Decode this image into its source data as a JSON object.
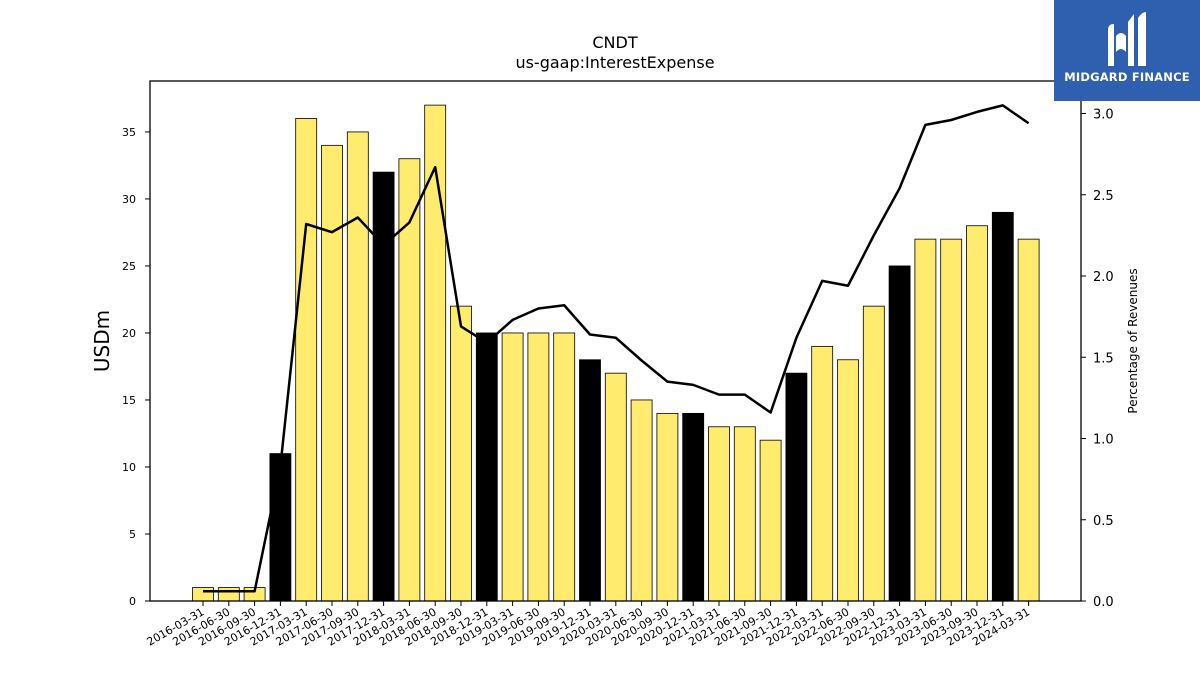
{
  "chart_data": {
    "type": "bar",
    "title": "CNDT",
    "subtitle": "us-gaap:InterestExpense",
    "ylabel": "USDm",
    "y2label": "Percentage of Revenues",
    "ylim": [
      0,
      38.8
    ],
    "y2lim": [
      0,
      3.2
    ],
    "yticks": [
      0,
      5,
      10,
      15,
      20,
      25,
      30,
      35
    ],
    "y2ticks": [
      0.0,
      0.5,
      1.0,
      1.5,
      2.0,
      2.5,
      3.0
    ],
    "grid": false,
    "categories": [
      "2016-03-31",
      "2016-06-30",
      "2016-09-30",
      "2016-12-31",
      "2017-03-31",
      "2017-06-30",
      "2017-09-30",
      "2017-12-31",
      "2018-03-31",
      "2018-06-30",
      "2018-09-30",
      "2018-12-31",
      "2019-03-31",
      "2019-06-30",
      "2019-09-30",
      "2019-12-31",
      "2020-03-31",
      "2020-06-30",
      "2020-09-30",
      "2020-12-31",
      "2021-03-31",
      "2021-06-30",
      "2021-09-30",
      "2021-12-31",
      "2022-03-31",
      "2022-06-30",
      "2022-09-30",
      "2022-12-31",
      "2023-03-31",
      "2023-06-30",
      "2023-09-30",
      "2023-12-31",
      "2024-03-31"
    ],
    "series": [
      {
        "type": "bar",
        "axis": "left",
        "values": [
          1,
          1,
          1,
          11,
          36,
          34,
          35,
          32,
          33,
          37,
          22,
          20,
          20,
          20,
          20,
          18,
          17,
          15,
          14,
          14,
          13,
          13,
          12,
          17,
          19,
          18,
          22,
          25,
          27,
          27,
          28,
          29,
          27
        ],
        "colors": [
          "#ffec6e",
          "#ffec6e",
          "#ffec6e",
          "#000000",
          "#ffec6e",
          "#ffec6e",
          "#ffec6e",
          "#000000",
          "#ffec6e",
          "#ffec6e",
          "#ffec6e",
          "#000000",
          "#ffec6e",
          "#ffec6e",
          "#ffec6e",
          "#000000",
          "#ffec6e",
          "#ffec6e",
          "#ffec6e",
          "#000000",
          "#ffec6e",
          "#ffec6e",
          "#ffec6e",
          "#000000",
          "#ffec6e",
          "#ffec6e",
          "#ffec6e",
          "#000000",
          "#ffec6e",
          "#ffec6e",
          "#ffec6e",
          "#000000",
          "#ffec6e"
        ]
      },
      {
        "type": "line",
        "axis": "right",
        "color": "#000000",
        "values": [
          0.06,
          0.06,
          0.06,
          0.83,
          2.32,
          2.27,
          2.36,
          2.19,
          2.33,
          2.67,
          1.69,
          1.59,
          1.73,
          1.8,
          1.82,
          1.64,
          1.62,
          1.48,
          1.35,
          1.33,
          1.27,
          1.27,
          1.16,
          1.62,
          1.97,
          1.94,
          2.25,
          2.54,
          2.93,
          2.96,
          3.01,
          3.05,
          2.94
        ]
      }
    ]
  },
  "logo": {
    "text": "MIDGARD FINANCE"
  }
}
